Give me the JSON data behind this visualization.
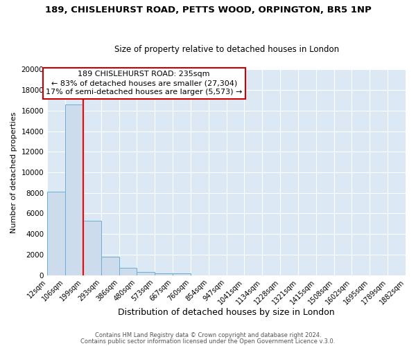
{
  "title": "189, CHISLEHURST ROAD, PETTS WOOD, ORPINGTON, BR5 1NP",
  "subtitle": "Size of property relative to detached houses in London",
  "xlabel": "Distribution of detached houses by size in London",
  "ylabel": "Number of detached properties",
  "bar_values": [
    8100,
    16600,
    5300,
    1800,
    700,
    300,
    200,
    150,
    0,
    0,
    0,
    0,
    0,
    0,
    0,
    0,
    0,
    0,
    0,
    0
  ],
  "bin_labels": [
    "12sqm",
    "106sqm",
    "199sqm",
    "293sqm",
    "386sqm",
    "480sqm",
    "573sqm",
    "667sqm",
    "760sqm",
    "854sqm",
    "947sqm",
    "1041sqm",
    "1134sqm",
    "1228sqm",
    "1321sqm",
    "1415sqm",
    "1508sqm",
    "1602sqm",
    "1695sqm",
    "1789sqm",
    "1882sqm"
  ],
  "ylim": [
    0,
    20000
  ],
  "yticks": [
    0,
    2000,
    4000,
    6000,
    8000,
    10000,
    12000,
    14000,
    16000,
    18000,
    20000
  ],
  "bar_color": "#ccdcec",
  "bar_edge_color": "#6baed6",
  "red_line_x": 2.0,
  "annotation_title": "189 CHISLEHURST ROAD: 235sqm",
  "annotation_line1": "← 83% of detached houses are smaller (27,304)",
  "annotation_line2": "17% of semi-detached houses are larger (5,573) →",
  "annotation_box_color": "#ffffff",
  "annotation_box_edge": "#cc0000",
  "footer1": "Contains HM Land Registry data © Crown copyright and database right 2024.",
  "footer2": "Contains public sector information licensed under the Open Government Licence v.3.0.",
  "plot_bg_color": "#dce9f5",
  "fig_background": "#ffffff",
  "grid_color": "#ffffff",
  "title_fontsize": 9.5,
  "subtitle_fontsize": 8.5,
  "ylabel_fontsize": 8,
  "xlabel_fontsize": 9,
  "tick_fontsize": 7,
  "annot_fontsize": 8,
  "footer_fontsize": 6
}
